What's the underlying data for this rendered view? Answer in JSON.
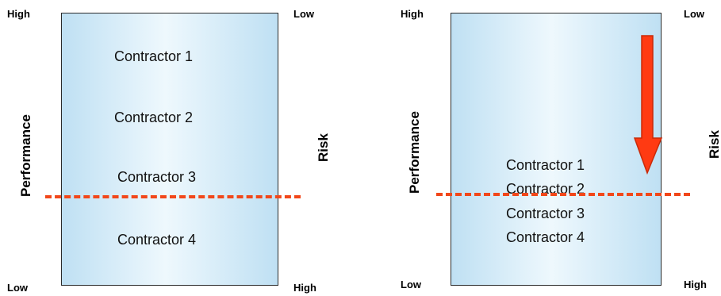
{
  "left_diagram": {
    "top_left": "High",
    "top_right": "Low",
    "bottom_left": "Low",
    "bottom_right": "High",
    "y_label": "Performance",
    "right_label": "Risk",
    "contractors": [
      "Contractor 1",
      "Contractor 2",
      "Contractor 3",
      "Contractor 4"
    ]
  },
  "right_diagram": {
    "top_left": "High",
    "top_right": "Low",
    "bottom_left": "Low",
    "bottom_right": "High",
    "y_label": "Performance",
    "right_label": "Risk",
    "contractors": [
      "Contractor 1",
      "Contractor 2",
      "Contractor 3",
      "Contractor 4"
    ]
  },
  "colors": {
    "threshold_line": "#f2471a",
    "arrow_fill": "#ff3a12",
    "panel_fill": "#bfe0f3"
  }
}
